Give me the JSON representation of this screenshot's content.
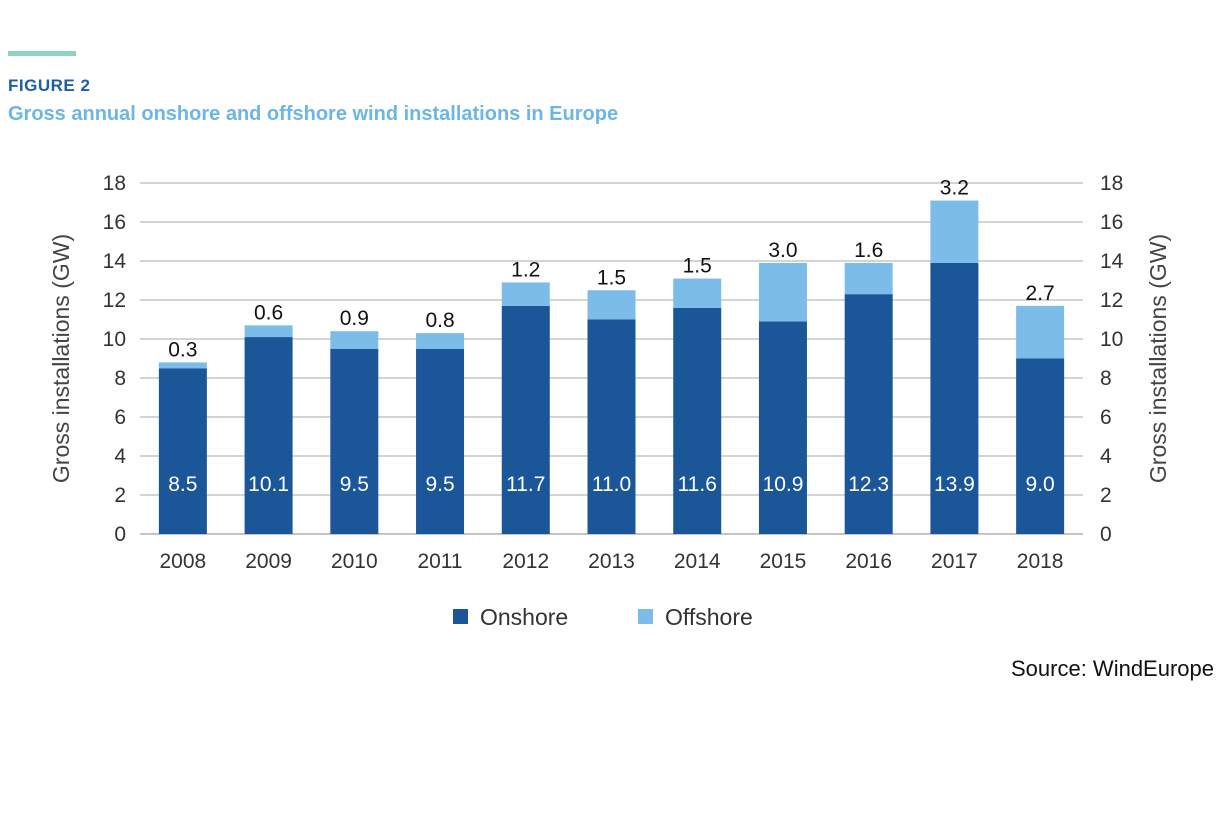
{
  "header": {
    "figure_label": "FIGURE 2",
    "title": "Gross annual onshore and offshore wind installations in Europe"
  },
  "source": "Source: WindEurope",
  "colors": {
    "onshore": "#1a5698",
    "offshore": "#7bbde8",
    "accent_rule": "#8fd3c3",
    "figure_label": "#1b5fa5",
    "title": "#6cb6e6"
  },
  "chart_data": {
    "type": "bar",
    "stacked": true,
    "categories": [
      "2008",
      "2009",
      "2010",
      "2011",
      "2012",
      "2013",
      "2014",
      "2015",
      "2016",
      "2017",
      "2018"
    ],
    "series": [
      {
        "name": "Onshore",
        "values": [
          8.5,
          10.1,
          9.5,
          9.5,
          11.7,
          11.0,
          11.6,
          10.9,
          12.3,
          13.9,
          9.0
        ],
        "labels": [
          "8.5",
          "10.1",
          "9.5",
          "9.5",
          "11.7",
          "11.0",
          "11.6",
          "10.9",
          "12.3",
          "13.9",
          "9.0"
        ]
      },
      {
        "name": "Offshore",
        "values": [
          0.3,
          0.6,
          0.9,
          0.8,
          1.2,
          1.5,
          1.5,
          3.0,
          1.6,
          3.2,
          2.7
        ],
        "labels": [
          "0.3",
          "0.6",
          "0.9",
          "0.8",
          "1.2",
          "1.5",
          "1.5",
          "3.0",
          "1.6",
          "3.2",
          "2.7"
        ]
      }
    ],
    "ylabel": "Gross installations (GW)",
    "ylabel_right": "Gross installations (GW)",
    "ylim": [
      0,
      18
    ],
    "yticks": [
      0,
      2,
      4,
      6,
      8,
      10,
      12,
      14,
      16,
      18
    ],
    "grid": true,
    "legend": "bottom-center"
  }
}
